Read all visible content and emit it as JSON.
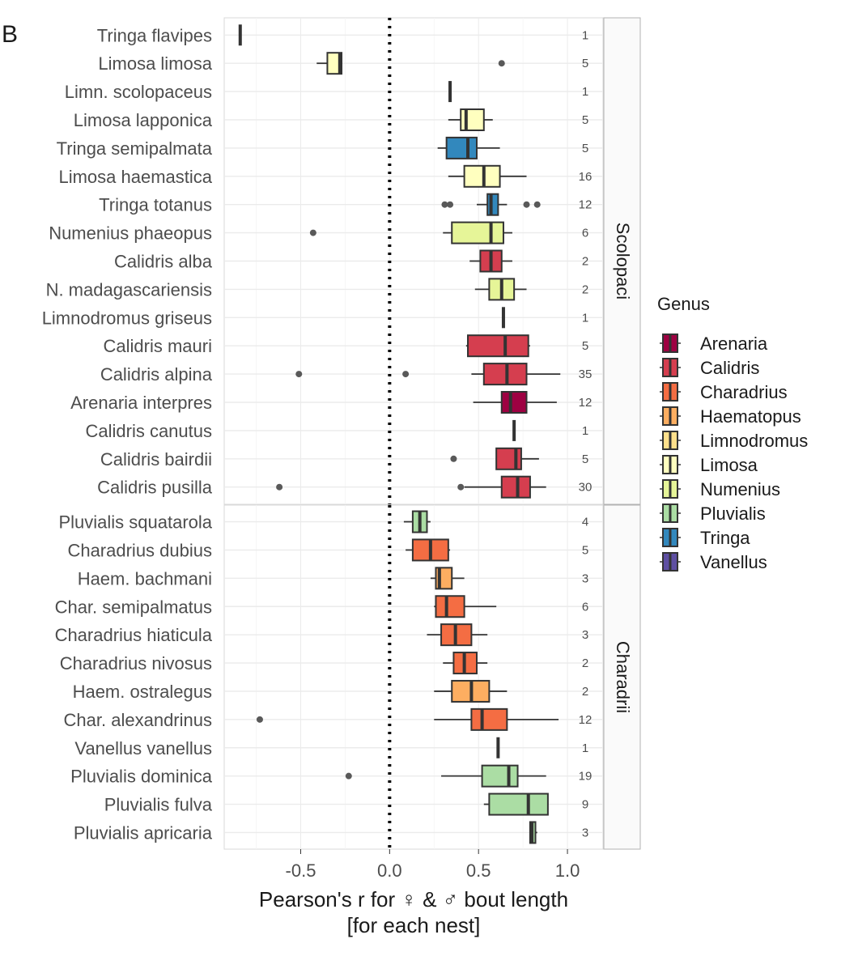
{
  "panel_label": "B",
  "chart_data": {
    "type": "boxplot",
    "xlabel_line1": "Pearson's r for ♀ & ♂ bout length",
    "xlabel_line2": "[for each nest]",
    "xlim": [
      -0.93,
      1.2
    ],
    "xticks": [
      -0.5,
      0.0,
      0.5,
      1.0
    ],
    "xtick_labels": [
      "-0.5",
      "0.0",
      "0.5",
      "1.0"
    ],
    "reference_line_x": 0.0,
    "legend": {
      "title": "Genus",
      "position": "right",
      "items": [
        {
          "name": "Arenaria",
          "color": "#9E0142"
        },
        {
          "name": "Calidris",
          "color": "#D53E4F"
        },
        {
          "name": "Charadrius",
          "color": "#F46D43"
        },
        {
          "name": "Haematopus",
          "color": "#FDAE61"
        },
        {
          "name": "Limnodromus",
          "color": "#FEE08B"
        },
        {
          "name": "Limosa",
          "color": "#FFFFBF"
        },
        {
          "name": "Numenius",
          "color": "#E6F598"
        },
        {
          "name": "Pluvialis",
          "color": "#ABDDA4"
        },
        {
          "name": "Tringa",
          "color": "#3288BD"
        },
        {
          "name": "Vanellus",
          "color": "#5E4FA2"
        }
      ]
    },
    "facets": [
      {
        "name": "Scolopaci",
        "rows": [
          {
            "species": "Tringa flavipes",
            "genus": "Tringa",
            "n": "1",
            "min": -0.84,
            "q1": -0.84,
            "median": -0.84,
            "q3": -0.84,
            "max": -0.84,
            "outliers": []
          },
          {
            "species": "Limosa limosa",
            "genus": "Limosa",
            "n": "5",
            "min": -0.41,
            "q1": -0.35,
            "median": -0.28,
            "q3": -0.27,
            "max": -0.27,
            "outliers": [
              0.63
            ]
          },
          {
            "species": "Limn. scolopaceus",
            "genus": "Limnodromus",
            "n": "1",
            "min": 0.34,
            "q1": 0.34,
            "median": 0.34,
            "q3": 0.34,
            "max": 0.34,
            "outliers": []
          },
          {
            "species": "Limosa lapponica",
            "genus": "Limosa",
            "n": "5",
            "min": 0.33,
            "q1": 0.4,
            "median": 0.43,
            "q3": 0.53,
            "max": 0.58,
            "outliers": []
          },
          {
            "species": "Tringa semipalmata",
            "genus": "Tringa",
            "n": "5",
            "min": 0.27,
            "q1": 0.32,
            "median": 0.44,
            "q3": 0.49,
            "max": 0.62,
            "outliers": []
          },
          {
            "species": "Limosa haemastica",
            "genus": "Limosa",
            "n": "16",
            "min": 0.33,
            "q1": 0.42,
            "median": 0.53,
            "q3": 0.62,
            "max": 0.77,
            "outliers": []
          },
          {
            "species": "Tringa totanus",
            "genus": "Tringa",
            "n": "12",
            "min": 0.49,
            "q1": 0.55,
            "median": 0.57,
            "q3": 0.61,
            "max": 0.66,
            "outliers": [
              0.31,
              0.34,
              0.77,
              0.83
            ]
          },
          {
            "species": "Numenius phaeopus",
            "genus": "Numenius",
            "n": "6",
            "min": 0.3,
            "q1": 0.35,
            "median": 0.57,
            "q3": 0.64,
            "max": 0.69,
            "outliers": [
              -0.43
            ]
          },
          {
            "species": "Calidris alba",
            "genus": "Calidris",
            "n": "2",
            "min": 0.45,
            "q1": 0.51,
            "median": 0.57,
            "q3": 0.63,
            "max": 0.69,
            "outliers": []
          },
          {
            "species": "N. madagascariensis",
            "genus": "Numenius",
            "n": "2",
            "min": 0.48,
            "q1": 0.56,
            "median": 0.63,
            "q3": 0.7,
            "max": 0.77,
            "outliers": []
          },
          {
            "species": "Limnodromus griseus",
            "genus": "Limnodromus",
            "n": "1",
            "min": 0.64,
            "q1": 0.64,
            "median": 0.64,
            "q3": 0.64,
            "max": 0.64,
            "outliers": []
          },
          {
            "species": "Calidris mauri",
            "genus": "Calidris",
            "n": "5",
            "min": 0.43,
            "q1": 0.44,
            "median": 0.65,
            "q3": 0.78,
            "max": 0.79,
            "outliers": []
          },
          {
            "species": "Calidris alpina",
            "genus": "Calidris",
            "n": "35",
            "min": 0.46,
            "q1": 0.53,
            "median": 0.66,
            "q3": 0.77,
            "max": 0.96,
            "outliers": [
              -0.51,
              0.09
            ]
          },
          {
            "species": "Arenaria interpres",
            "genus": "Arenaria",
            "n": "12",
            "min": 0.47,
            "q1": 0.63,
            "median": 0.68,
            "q3": 0.77,
            "max": 0.94,
            "outliers": []
          },
          {
            "species": "Calidris canutus",
            "genus": "Calidris",
            "n": "1",
            "min": 0.7,
            "q1": 0.7,
            "median": 0.7,
            "q3": 0.7,
            "max": 0.7,
            "outliers": []
          },
          {
            "species": "Calidris bairdii",
            "genus": "Calidris",
            "n": "5",
            "min": 0.6,
            "q1": 0.6,
            "median": 0.71,
            "q3": 0.74,
            "max": 0.84,
            "outliers": [
              0.36
            ]
          },
          {
            "species": "Calidris pusilla",
            "genus": "Calidris",
            "n": "30",
            "min": 0.42,
            "q1": 0.63,
            "median": 0.72,
            "q3": 0.79,
            "max": 0.88,
            "outliers": [
              -0.62,
              0.4
            ]
          }
        ]
      },
      {
        "name": "Charadrii",
        "rows": [
          {
            "species": "Pluvialis squatarola",
            "genus": "Pluvialis",
            "n": "4",
            "min": 0.08,
            "q1": 0.13,
            "median": 0.17,
            "q3": 0.21,
            "max": 0.23,
            "outliers": []
          },
          {
            "species": "Charadrius dubius",
            "genus": "Charadrius",
            "n": "5",
            "min": 0.09,
            "q1": 0.13,
            "median": 0.23,
            "q3": 0.33,
            "max": 0.34,
            "outliers": []
          },
          {
            "species": "Haem. bachmani",
            "genus": "Haematopus",
            "n": "3",
            "min": 0.23,
            "q1": 0.26,
            "median": 0.28,
            "q3": 0.35,
            "max": 0.42,
            "outliers": []
          },
          {
            "species": "Char. semipalmatus",
            "genus": "Charadrius",
            "n": "6",
            "min": 0.25,
            "q1": 0.26,
            "median": 0.32,
            "q3": 0.42,
            "max": 0.6,
            "outliers": []
          },
          {
            "species": "Charadrius hiaticula",
            "genus": "Charadrius",
            "n": "3",
            "min": 0.21,
            "q1": 0.29,
            "median": 0.37,
            "q3": 0.46,
            "max": 0.55,
            "outliers": []
          },
          {
            "species": "Charadrius nivosus",
            "genus": "Charadrius",
            "n": "2",
            "min": 0.3,
            "q1": 0.36,
            "median": 0.42,
            "q3": 0.49,
            "max": 0.55,
            "outliers": []
          },
          {
            "species": "Haem. ostralegus",
            "genus": "Haematopus",
            "n": "2",
            "min": 0.25,
            "q1": 0.35,
            "median": 0.46,
            "q3": 0.56,
            "max": 0.66,
            "outliers": []
          },
          {
            "species": "Char. alexandrinus",
            "genus": "Charadrius",
            "n": "12",
            "min": 0.25,
            "q1": 0.46,
            "median": 0.52,
            "q3": 0.66,
            "max": 0.95,
            "outliers": [
              -0.73
            ]
          },
          {
            "species": "Vanellus vanellus",
            "genus": "Vanellus",
            "n": "1",
            "min": 0.61,
            "q1": 0.61,
            "median": 0.61,
            "q3": 0.61,
            "max": 0.61,
            "outliers": []
          },
          {
            "species": "Pluvialis dominica",
            "genus": "Pluvialis",
            "n": "19",
            "min": 0.29,
            "q1": 0.52,
            "median": 0.67,
            "q3": 0.72,
            "max": 0.88,
            "outliers": [
              -0.23
            ]
          },
          {
            "species": "Pluvialis fulva",
            "genus": "Pluvialis",
            "n": "9",
            "min": 0.53,
            "q1": 0.56,
            "median": 0.78,
            "q3": 0.89,
            "max": 0.89,
            "outliers": []
          },
          {
            "species": "Pluvialis apricaria",
            "genus": "Pluvialis",
            "n": "3",
            "min": 0.79,
            "q1": 0.79,
            "median": 0.8,
            "q3": 0.82,
            "max": 0.83,
            "outliers": []
          }
        ]
      }
    ]
  }
}
